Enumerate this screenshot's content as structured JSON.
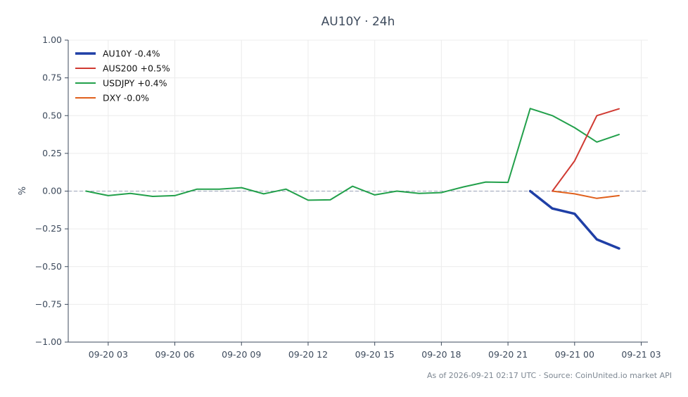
{
  "chart_data": {
    "type": "line",
    "title": "AU10Y · 24h",
    "xlabel": "",
    "ylabel": "%",
    "ylim": [
      -1.0,
      1.0
    ],
    "xlim": [
      "2026-09-20 01:12",
      "2026-09-21 03:18"
    ],
    "grid": true,
    "legend_position": "top-left",
    "reference_line": {
      "y": 0,
      "style": "dashed",
      "color": "#9aa3b8"
    },
    "y_ticks": [
      1.0,
      0.75,
      0.5,
      0.25,
      0.0,
      -0.25,
      -0.5,
      -0.75,
      -1.0
    ],
    "y_tick_labels": [
      "1.00",
      "0.75",
      "0.50",
      "0.25",
      "0.00",
      "−0.25",
      "−0.50",
      "−0.75",
      "−1.00"
    ],
    "x_ticks": [
      "2026-09-20 03:00",
      "2026-09-20 06:00",
      "2026-09-20 09:00",
      "2026-09-20 12:00",
      "2026-09-20 15:00",
      "2026-09-20 18:00",
      "2026-09-20 21:00",
      "2026-09-21 00:00",
      "2026-09-21 03:00"
    ],
    "x_tick_labels": [
      "09-20 03",
      "09-20 06",
      "09-20 09",
      "09-20 12",
      "09-20 15",
      "09-20 18",
      "09-20 21",
      "09-21 00",
      "09-21 03"
    ],
    "series": [
      {
        "name": "AU10Y -0.4%",
        "color": "#1f3fa6",
        "width": 3.5,
        "x": [
          "2026-09-20 22:00",
          "2026-09-20 23:00",
          "2026-09-21 00:00",
          "2026-09-21 01:00",
          "2026-09-21 02:00"
        ],
        "y": [
          0.0,
          -0.115,
          -0.15,
          -0.32,
          -0.38
        ]
      },
      {
        "name": "AUS200 +0.5%",
        "color": "#d03a32",
        "width": 2,
        "x": [
          "2026-09-20 23:00",
          "2026-09-21 00:00",
          "2026-09-21 01:00",
          "2026-09-21 02:00"
        ],
        "y": [
          0.0,
          0.2,
          0.5,
          0.545
        ]
      },
      {
        "name": "USDJPY +0.4%",
        "color": "#22a04b",
        "width": 2,
        "x": [
          "2026-09-20 02:00",
          "2026-09-20 03:00",
          "2026-09-20 04:00",
          "2026-09-20 05:00",
          "2026-09-20 06:00",
          "2026-09-20 07:00",
          "2026-09-20 08:00",
          "2026-09-20 09:00",
          "2026-09-20 10:00",
          "2026-09-20 11:00",
          "2026-09-20 12:00",
          "2026-09-20 13:00",
          "2026-09-20 14:00",
          "2026-09-20 15:00",
          "2026-09-20 16:00",
          "2026-09-20 17:00",
          "2026-09-20 18:00",
          "2026-09-20 19:00",
          "2026-09-20 20:00",
          "2026-09-20 21:00",
          "2026-09-20 22:00",
          "2026-09-20 23:00",
          "2026-09-21 00:00",
          "2026-09-21 01:00",
          "2026-09-21 02:00"
        ],
        "y": [
          0.0,
          -0.03,
          -0.015,
          -0.035,
          -0.03,
          0.013,
          0.013,
          0.023,
          -0.018,
          0.013,
          -0.06,
          -0.058,
          0.032,
          -0.025,
          0.0,
          -0.015,
          -0.01,
          0.028,
          0.06,
          0.058,
          0.547,
          0.5,
          0.42,
          0.325,
          0.375
        ]
      },
      {
        "name": "DXY -0.0%",
        "color": "#e0601c",
        "width": 2,
        "x": [
          "2026-09-20 23:00",
          "2026-09-21 00:00",
          "2026-09-21 01:00",
          "2026-09-21 02:00"
        ],
        "y": [
          0.0,
          -0.018,
          -0.048,
          -0.03
        ]
      }
    ]
  },
  "footer": "As of 2026-09-21 02:17 UTC · Source: CoinUnited.io market API"
}
